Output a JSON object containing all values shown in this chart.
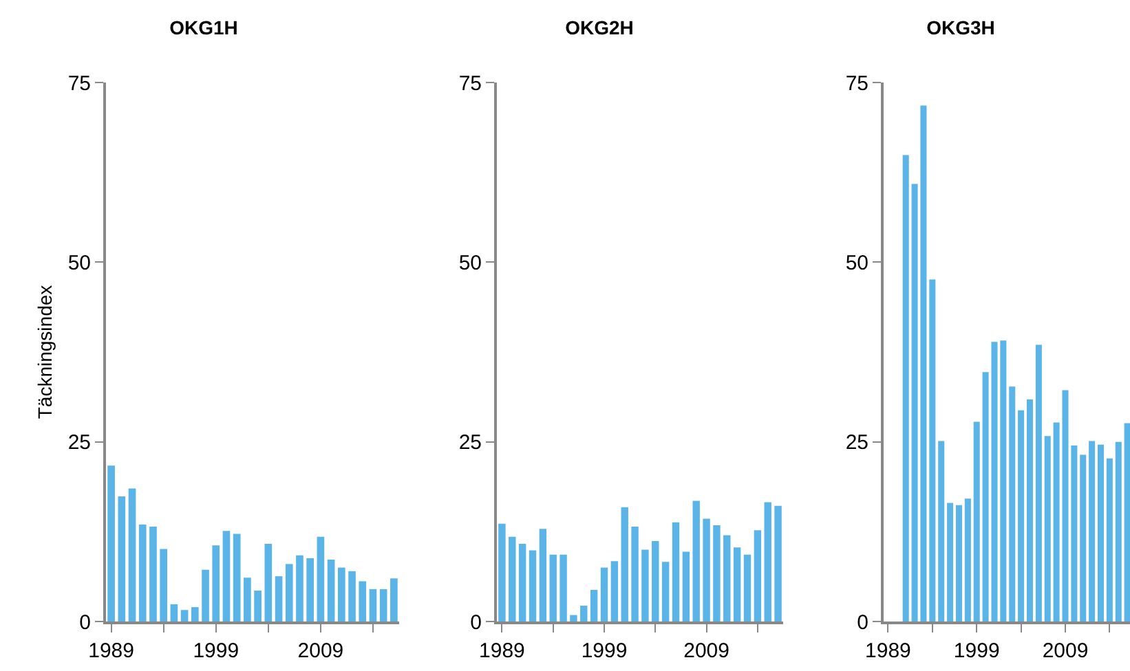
{
  "chart_data": [
    {
      "type": "bar",
      "title": "OKG1H",
      "ylabel": "Täckningsindex",
      "color": "#5ab4e8",
      "x": [
        1989,
        1990,
        1991,
        1992,
        1993,
        1994,
        1995,
        1996,
        1997,
        1998,
        1999,
        2000,
        2001,
        2002,
        2003,
        2004,
        2005,
        2006,
        2007,
        2008,
        2009,
        2010,
        2011,
        2012,
        2013,
        2014,
        2015,
        2016
      ],
      "values": [
        21.7,
        17.4,
        18.5,
        13.5,
        13.2,
        10.1,
        2.4,
        1.6,
        2.0,
        7.2,
        10.6,
        12.6,
        12.2,
        6.1,
        4.3,
        10.8,
        6.3,
        8.0,
        9.2,
        8.8,
        11.8,
        8.6,
        7.5,
        7.0,
        5.6,
        4.5,
        4.5,
        6.0
      ],
      "xlim": [
        1988.5,
        2016.5
      ],
      "xticks": [
        1989,
        {
          "value": 1994,
          "label": null
        },
        1999,
        {
          "value": 2004,
          "label": null
        },
        2009,
        {
          "value": 2014,
          "label": null
        }
      ],
      "ylim": [
        0,
        75
      ],
      "yticks": [
        0,
        25,
        50,
        75
      ]
    },
    {
      "type": "bar",
      "title": "OKG2H",
      "color": "#5ab4e8",
      "x": [
        1989,
        1990,
        1991,
        1992,
        1993,
        1994,
        1995,
        1996,
        1997,
        1998,
        1999,
        2000,
        2001,
        2002,
        2003,
        2004,
        2005,
        2006,
        2007,
        2008,
        2009,
        2010,
        2011,
        2012,
        2013,
        2014,
        2015,
        2016
      ],
      "values": [
        13.6,
        11.8,
        10.8,
        9.9,
        12.9,
        9.3,
        9.3,
        0.9,
        2.2,
        4.4,
        7.5,
        8.4,
        15.9,
        13.2,
        10.0,
        11.2,
        8.3,
        13.8,
        9.7,
        16.8,
        14.3,
        13.4,
        12.0,
        10.3,
        9.3,
        12.7,
        16.6,
        16.1
      ],
      "xlim": [
        1988.5,
        2016.5
      ],
      "xticks": [
        1989,
        {
          "value": 1994,
          "label": null
        },
        1999,
        {
          "value": 2004,
          "label": null
        },
        2009,
        {
          "value": 2014,
          "label": null
        }
      ],
      "ylim": [
        0,
        75
      ],
      "yticks": [
        0,
        25,
        50,
        75
      ]
    },
    {
      "type": "bar",
      "title": "OKG3H",
      "color": "#5ab4e8",
      "x": [
        1991,
        1992,
        1993,
        1994,
        1995,
        1996,
        1997,
        1998,
        1999,
        2000,
        2001,
        2002,
        2003,
        2004,
        2005,
        2006,
        2007,
        2008,
        2009,
        2010,
        2011,
        2012,
        2013,
        2014,
        2015,
        2016
      ],
      "values": [
        64.9,
        60.9,
        71.8,
        47.6,
        25.1,
        16.5,
        16.2,
        17.1,
        27.8,
        34.7,
        38.9,
        39.1,
        32.7,
        29.4,
        30.9,
        38.5,
        25.8,
        27.7,
        32.2,
        24.5,
        23.2,
        25.1,
        24.6,
        22.7,
        25.0,
        27.6
      ],
      "xlim": [
        1988.5,
        2016.3
      ],
      "xticks": [
        1989,
        {
          "value": 1994,
          "label": null
        },
        1999,
        {
          "value": 2004,
          "label": null
        },
        2009,
        {
          "value": 2014,
          "label": null
        }
      ],
      "ylim": [
        0,
        75
      ],
      "yticks": [
        0,
        25,
        50,
        75
      ]
    }
  ]
}
